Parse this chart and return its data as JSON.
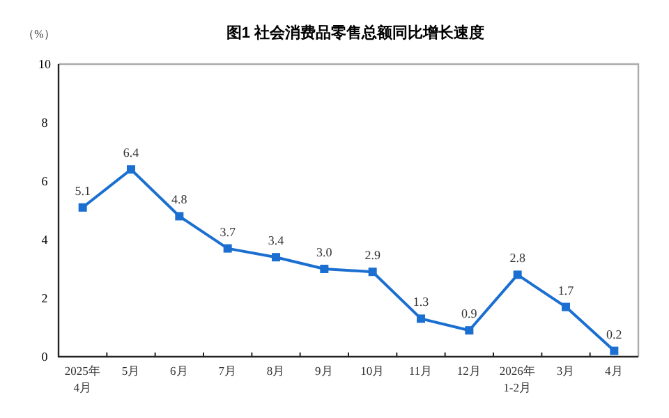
{
  "chart_data": {
    "type": "line",
    "title": "图1  社会消费品零售总额同比增长速度",
    "ylabel": "（%）",
    "categories": [
      "2025年\n4月",
      "5月",
      "6月",
      "7月",
      "8月",
      "9月",
      "10月",
      "11月",
      "12月",
      "2026年\n1-2月",
      "3月",
      "4月"
    ],
    "series": [
      {
        "color": "#1a6fd0",
        "values": [
          5.1,
          6.4,
          4.8,
          3.7,
          3.4,
          3.0,
          2.9,
          1.3,
          0.9,
          2.8,
          1.7,
          0.2
        ],
        "value_labels": [
          "5.1",
          "6.4",
          "4.8",
          "3.7",
          "3.4",
          "3.0",
          "2.9",
          "1.3",
          "0.9",
          "2.8",
          "1.7",
          "0.2"
        ]
      }
    ],
    "ylim": [
      0,
      10
    ],
    "yticks": [
      0,
      2,
      4,
      6,
      8,
      10
    ],
    "marker": "square"
  }
}
